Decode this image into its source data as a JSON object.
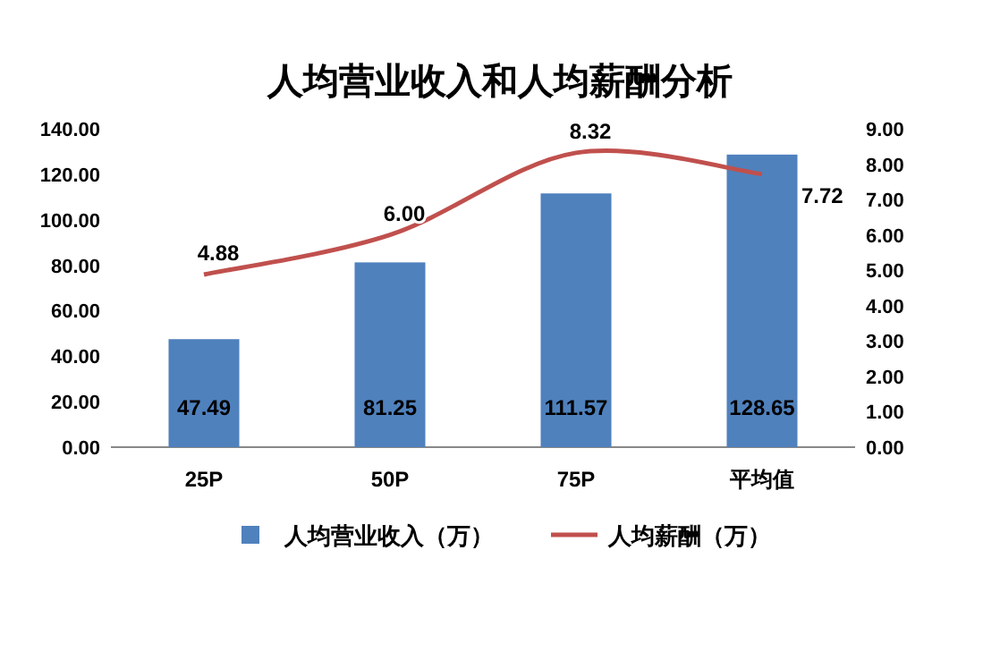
{
  "chart_data": {
    "type": "bar",
    "title": "人均营业收入和人均薪酬分析",
    "categories": [
      "25P",
      "50P",
      "75P",
      "平均值"
    ],
    "series": [
      {
        "name": "人均营业收入（万）",
        "color": "#4f81bd",
        "values": [
          47.49,
          81.25,
          111.57,
          128.65
        ],
        "value_labels": [
          "47.49",
          "81.25",
          "111.57",
          "128.65"
        ]
      },
      {
        "name": "人均薪酬（万）",
        "type": "line",
        "axis": "y2",
        "color": "#c0504d",
        "values": [
          4.88,
          6.0,
          8.32,
          7.72
        ],
        "value_labels": [
          "4.88",
          "6.00",
          "8.32",
          "7.72"
        ]
      }
    ],
    "ylim": [
      0,
      140
    ],
    "yticks": [
      {
        "value": 0,
        "label": "0.00"
      },
      {
        "value": 20,
        "label": "20.00"
      },
      {
        "value": 40,
        "label": "40.00"
      },
      {
        "value": 60,
        "label": "60.00"
      },
      {
        "value": 80,
        "label": "80.00"
      },
      {
        "value": 100,
        "label": "100.00"
      },
      {
        "value": 120,
        "label": "120.00"
      },
      {
        "value": 140,
        "label": "140.00"
      }
    ],
    "y2lim": [
      0,
      9
    ],
    "y2ticks": [
      {
        "value": 0,
        "label": "0.00"
      },
      {
        "value": 1,
        "label": "1.00"
      },
      {
        "value": 2,
        "label": "2.00"
      },
      {
        "value": 3,
        "label": "3.00"
      },
      {
        "value": 4,
        "label": "4.00"
      },
      {
        "value": 5,
        "label": "5.00"
      },
      {
        "value": 6,
        "label": "6.00"
      },
      {
        "value": 7,
        "label": "7.00"
      },
      {
        "value": 8,
        "label": "8.00"
      },
      {
        "value": 9,
        "label": "9.00"
      }
    ],
    "legend": "bottom",
    "marker": "none",
    "grid": false
  }
}
